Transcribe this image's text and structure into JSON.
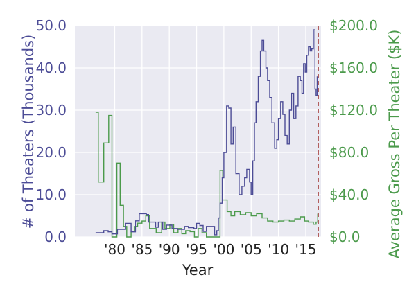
{
  "chart_data": {
    "type": "line",
    "title": "",
    "xlabel": "Year",
    "ylabel_left": "# of Theaters (Thousands)",
    "ylabel_right": "Average Gross Per Theater ($K)",
    "xlim": [
      1972.7,
      2017.8
    ],
    "xticks": [
      1980,
      1985,
      1990,
      1995,
      2000,
      2005,
      2010,
      2015
    ],
    "xtick_labels": [
      "'80",
      "'85",
      "'90",
      "'95",
      "'00",
      "'05",
      "'10",
      "'15"
    ],
    "ylim_left": [
      0,
      50
    ],
    "yticks_left": [
      "0.0",
      "10.0",
      "20.0",
      "30.0",
      "40.0",
      "50.0"
    ],
    "ylim_right": [
      0,
      200
    ],
    "yticks_right": [
      "$0.0",
      "$40.0",
      "$80.0",
      "$120.0",
      "$160.0",
      "$200.0"
    ],
    "grid": true,
    "vline": {
      "x": 2017.3,
      "style": "dashed",
      "color": "#b05a5a"
    },
    "colors": {
      "left": "#4c4c96",
      "right": "#4b9a4b",
      "background": "#eaeaf2",
      "grid": "#ffffff"
    },
    "series": [
      {
        "axis": "left",
        "step": true,
        "x": [
          1976.5,
          1977.3,
          1978.0,
          1978.8,
          1979.5,
          1980.5,
          1982.0,
          1983.0,
          1983.8,
          1984.5,
          1985.0,
          1985.8,
          1986.2,
          1987.5,
          1988.0,
          1988.8,
          1989.5,
          1990.5,
          1991.5,
          1992.8,
          1993.5,
          1994.5,
          1995.0,
          1995.6,
          1996.2,
          1996.8,
          1998.3,
          1998.7,
          1999.0,
          1999.3,
          1999.7,
          2000.0,
          2000.5,
          2000.9,
          2001.3,
          2001.7,
          2002.2,
          2002.8,
          2003.3,
          2003.8,
          2004.2,
          2004.7,
          2005.0,
          2005.3,
          2005.6,
          2005.9,
          2006.3,
          2006.7,
          2007.0,
          2007.3,
          2007.7,
          2008.0,
          2008.4,
          2008.8,
          2009.3,
          2009.7,
          2010.0,
          2010.4,
          2010.8,
          2011.2,
          2011.6,
          2012.0,
          2012.4,
          2012.8,
          2013.2,
          2013.6,
          2014.0,
          2014.3,
          2014.6,
          2014.9,
          2015.2,
          2015.5,
          2015.8,
          2016.1,
          2016.4,
          2016.7,
          2016.9,
          2017.1
        ],
        "y": [
          1.0,
          1.0,
          1.5,
          1.2,
          0.7,
          1.8,
          3.2,
          1.2,
          3.8,
          5.5,
          5.5,
          5.3,
          3.5,
          2.3,
          3.5,
          1.8,
          2.8,
          2.0,
          1.8,
          2.5,
          2.2,
          2.0,
          3.2,
          2.7,
          1.3,
          2.5,
          0.5,
          1.5,
          4.5,
          8.0,
          14.0,
          20.0,
          31.0,
          30.5,
          22.0,
          26.0,
          15.0,
          10.0,
          12.0,
          14.0,
          16.0,
          13.0,
          10.0,
          18.0,
          27.0,
          32.0,
          38.0,
          44.0,
          46.5,
          44.0,
          40.0,
          37.0,
          33.0,
          27.0,
          21.0,
          23.0,
          28.0,
          32.0,
          29.0,
          24.0,
          22.0,
          30.0,
          34.0,
          28.0,
          31.0,
          38.0,
          37.0,
          34.0,
          41.0,
          39.0,
          43.0,
          45.0,
          44.0,
          44.5,
          49.0,
          35.0,
          33.5,
          38.0
        ]
      },
      {
        "axis": "right",
        "step": true,
        "x": [
          1976.5,
          1977.0,
          1978.0,
          1978.9,
          1979.5,
          1980.4,
          1981.0,
          1981.6,
          1982.2,
          1983.0,
          1983.6,
          1984.2,
          1985.0,
          1985.7,
          1986.4,
          1987.0,
          1987.6,
          1988.6,
          1989.2,
          1990.1,
          1990.8,
          1991.6,
          1992.3,
          1993.0,
          1993.8,
          1994.6,
          1995.3,
          1996.0,
          1996.8,
          1998.7,
          1999.3,
          1999.8,
          2000.6,
          2001.3,
          2002.0,
          2003.0,
          2004.0,
          2005.0,
          2006.0,
          2007.0,
          2008.0,
          2009.0,
          2010.0,
          2011.0,
          2012.0,
          2013.0,
          2014.0,
          2014.8,
          2015.5,
          2016.4,
          2016.9,
          2017.2
        ],
        "y": [
          118,
          52,
          89,
          115,
          0,
          70,
          30,
          10,
          0,
          5,
          10,
          13,
          15,
          20,
          8,
          8,
          4,
          14,
          8,
          12,
          4,
          8,
          3,
          6,
          5,
          0,
          8,
          4,
          0,
          0,
          63,
          35,
          24,
          20,
          24,
          21,
          23,
          20,
          22,
          18,
          15,
          14,
          15,
          16,
          15,
          17,
          19,
          15,
          14,
          12,
          14,
          22
        ]
      }
    ]
  }
}
